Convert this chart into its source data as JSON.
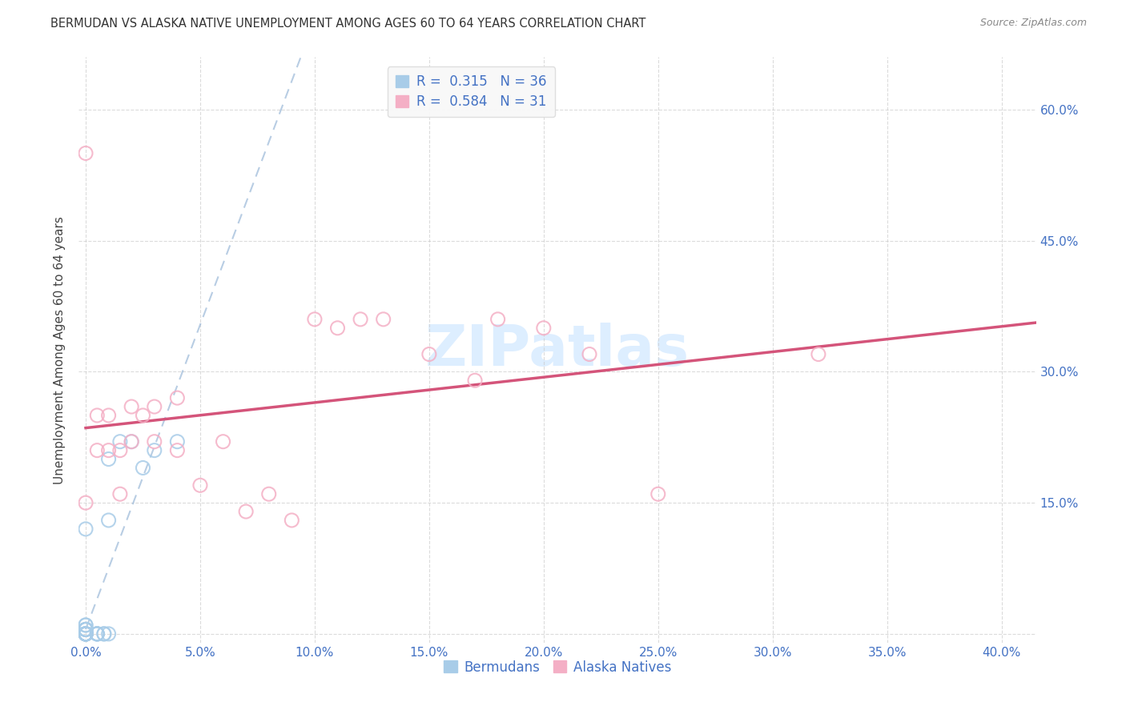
{
  "title": "BERMUDAN VS ALASKA NATIVE UNEMPLOYMENT AMONG AGES 60 TO 64 YEARS CORRELATION CHART",
  "source": "Source: ZipAtlas.com",
  "ylabel": "Unemployment Among Ages 60 to 64 years",
  "xlim": [
    -0.003,
    0.415
  ],
  "ylim": [
    -0.01,
    0.66
  ],
  "xticks": [
    0.0,
    0.05,
    0.1,
    0.15,
    0.2,
    0.25,
    0.3,
    0.35,
    0.4
  ],
  "yticks": [
    0.0,
    0.15,
    0.3,
    0.45,
    0.6
  ],
  "bermudans_x": [
    0.0,
    0.0,
    0.0,
    0.0,
    0.0,
    0.0,
    0.0,
    0.0,
    0.0,
    0.0,
    0.0,
    0.0,
    0.0,
    0.0,
    0.0,
    0.0,
    0.0,
    0.0,
    0.0,
    0.0,
    0.0,
    0.0,
    0.005,
    0.005,
    0.005,
    0.005,
    0.008,
    0.008,
    0.01,
    0.01,
    0.01,
    0.015,
    0.02,
    0.025,
    0.03,
    0.04
  ],
  "bermudans_y": [
    0.0,
    0.0,
    0.0,
    0.0,
    0.0,
    0.0,
    0.0,
    0.0,
    0.0,
    0.0,
    0.0,
    0.0,
    0.0,
    0.0,
    0.005,
    0.005,
    0.005,
    0.005,
    0.005,
    0.01,
    0.01,
    0.12,
    0.0,
    0.0,
    0.0,
    0.0,
    0.0,
    0.0,
    0.0,
    0.13,
    0.2,
    0.22,
    0.22,
    0.19,
    0.21,
    0.22
  ],
  "alaska_x": [
    0.0,
    0.0,
    0.005,
    0.005,
    0.01,
    0.01,
    0.015,
    0.015,
    0.02,
    0.02,
    0.025,
    0.03,
    0.03,
    0.04,
    0.04,
    0.05,
    0.06,
    0.07,
    0.08,
    0.09,
    0.1,
    0.11,
    0.12,
    0.13,
    0.15,
    0.17,
    0.18,
    0.2,
    0.22,
    0.25,
    0.32
  ],
  "alaska_y": [
    0.55,
    0.15,
    0.21,
    0.25,
    0.21,
    0.25,
    0.16,
    0.21,
    0.22,
    0.26,
    0.25,
    0.22,
    0.26,
    0.21,
    0.27,
    0.17,
    0.22,
    0.14,
    0.16,
    0.13,
    0.36,
    0.35,
    0.36,
    0.36,
    0.32,
    0.29,
    0.36,
    0.35,
    0.32,
    0.16,
    0.32
  ],
  "R_bermudans": 0.315,
  "N_bermudans": 36,
  "R_alaska": 0.584,
  "N_alaska": 31,
  "blue_scatter_color": "#a8cce8",
  "pink_scatter_color": "#f4afc5",
  "blue_line_color": "#4472c4",
  "pink_line_color": "#d4547a",
  "blue_dashed_color": "#9ab8d8",
  "tick_color": "#4472c4",
  "title_color": "#333333",
  "source_color": "#888888",
  "watermark_color": "#ddeeff",
  "grid_color": "#cccccc",
  "background": "#ffffff",
  "legend_box_color": "#f8f8f8",
  "legend_edge_color": "#dddddd"
}
